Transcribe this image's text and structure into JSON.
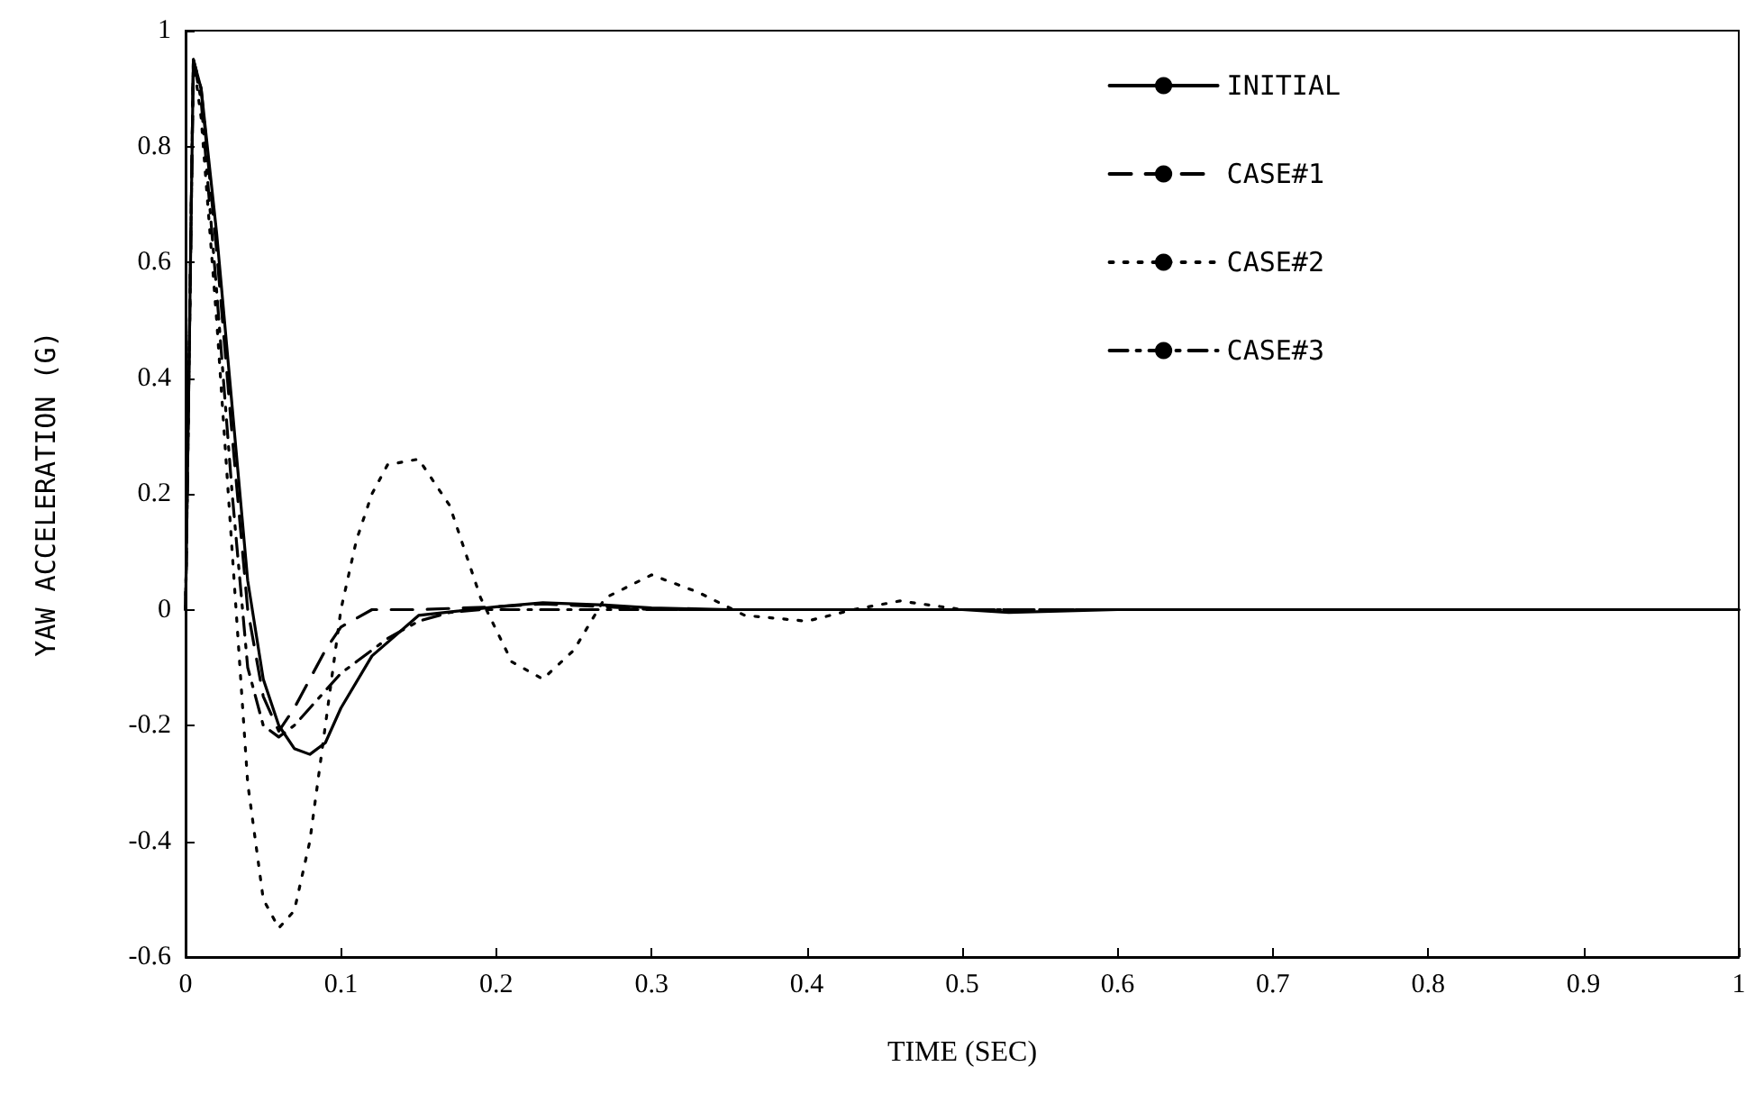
{
  "chart_data": {
    "type": "line",
    "xlabel": "TIME (SEC)",
    "ylabel": "YAW ACCELERATION (G)",
    "xlim": [
      0,
      1
    ],
    "xticks": [
      0,
      0.1,
      0.2,
      0.3,
      0.4,
      0.5,
      0.6,
      0.7,
      0.8,
      0.9,
      1
    ],
    "ylim": [
      -0.6,
      1
    ],
    "yticks": [
      -0.6,
      -0.4,
      -0.2,
      0,
      0.2,
      0.4,
      0.6,
      0.8,
      1
    ],
    "grid": false,
    "legend": "top right",
    "marker": "none",
    "series": [
      {
        "name": "INITIAL",
        "color": "#000000",
        "line_style": "solid",
        "x": [
          0,
          0.005,
          0.01,
          0.02,
          0.03,
          0.04,
          0.05,
          0.06,
          0.07,
          0.08,
          0.09,
          0.1,
          0.12,
          0.15,
          0.2,
          0.23,
          0.27,
          0.3,
          0.35,
          0.4,
          0.5,
          0.53,
          0.6,
          0.8,
          1
        ],
        "values": [
          0,
          0.95,
          0.9,
          0.65,
          0.35,
          0.05,
          -0.12,
          -0.2,
          -0.24,
          -0.25,
          -0.23,
          -0.17,
          -0.08,
          -0.01,
          0.005,
          0.012,
          0.008,
          0.003,
          0,
          0,
          0,
          -0.005,
          0,
          0,
          0
        ]
      },
      {
        "name": "CASE#1",
        "color": "#000000",
        "line_style": "dashed",
        "x": [
          0,
          0.005,
          0.01,
          0.02,
          0.03,
          0.04,
          0.05,
          0.06,
          0.07,
          0.08,
          0.09,
          0.1,
          0.12,
          0.15,
          0.2,
          0.23,
          0.27,
          0.3,
          0.4,
          0.6,
          1
        ],
        "values": [
          0,
          0.95,
          0.9,
          0.62,
          0.3,
          0,
          -0.15,
          -0.21,
          -0.17,
          -0.12,
          -0.07,
          -0.03,
          0,
          0,
          0.005,
          0.01,
          0.005,
          0,
          0,
          0,
          0
        ]
      },
      {
        "name": "CASE#2",
        "color": "#000000",
        "line_style": "dotted",
        "x": [
          0,
          0.005,
          0.01,
          0.02,
          0.03,
          0.04,
          0.05,
          0.06,
          0.07,
          0.08,
          0.09,
          0.1,
          0.11,
          0.12,
          0.13,
          0.15,
          0.17,
          0.19,
          0.21,
          0.23,
          0.25,
          0.27,
          0.3,
          0.33,
          0.36,
          0.4,
          0.43,
          0.46,
          0.5,
          0.6,
          1
        ],
        "values": [
          0,
          0.95,
          0.85,
          0.5,
          0.1,
          -0.3,
          -0.5,
          -0.55,
          -0.52,
          -0.4,
          -0.2,
          0,
          0.12,
          0.2,
          0.25,
          0.26,
          0.18,
          0.02,
          -0.09,
          -0.12,
          -0.07,
          0.02,
          0.06,
          0.03,
          -0.01,
          -0.02,
          0,
          0.015,
          0,
          0,
          0
        ]
      },
      {
        "name": "CASE#3",
        "color": "#000000",
        "line_style": "dashdot",
        "x": [
          0,
          0.005,
          0.01,
          0.02,
          0.03,
          0.04,
          0.05,
          0.06,
          0.07,
          0.08,
          0.09,
          0.1,
          0.11,
          0.12,
          0.13,
          0.15,
          0.17,
          0.19,
          0.25,
          0.4,
          1
        ],
        "values": [
          0,
          0.95,
          0.88,
          0.55,
          0.2,
          -0.1,
          -0.2,
          -0.22,
          -0.2,
          -0.17,
          -0.14,
          -0.11,
          -0.09,
          -0.07,
          -0.05,
          -0.02,
          -0.005,
          0,
          0,
          0,
          0
        ]
      }
    ]
  }
}
